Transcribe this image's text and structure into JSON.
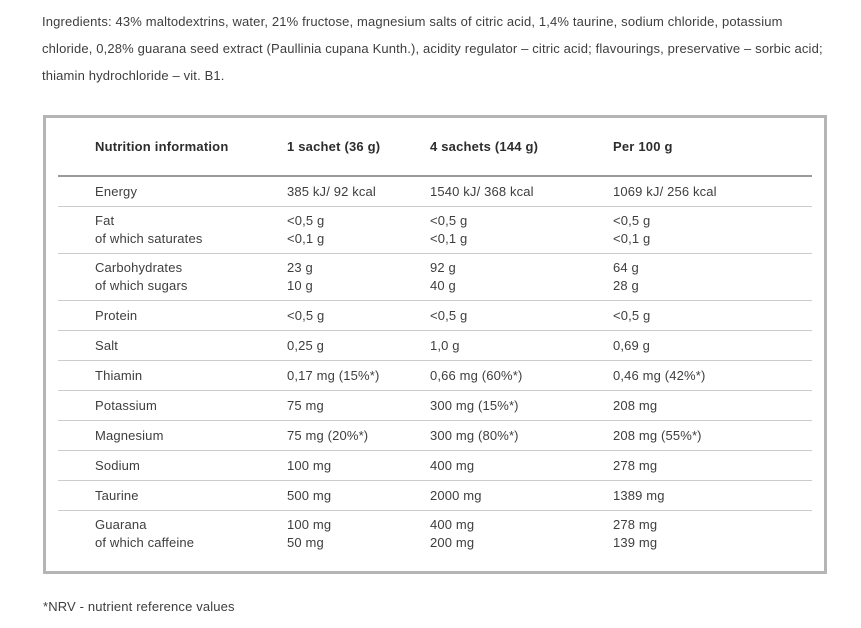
{
  "ingredients_paragraph": "Ingredients: 43% maltodextrins, water, 21% fructose, magnesium salts of citric acid, 1,4% taurine, sodium chloride, potassium chloride, 0,28% guarana seed extract (Paullinia cupana Kunth.), acidity regulator – citric acid; flavourings, preservative – sorbic acid; thiamin hydrochloride – vit. B1.",
  "table": {
    "columns": [
      "Nutrition information",
      "1 sachet (36 g)",
      "4 sachets (144 g)",
      "Per 100 g"
    ],
    "rows": [
      {
        "cells": [
          [
            "Energy"
          ],
          [
            "385 kJ/ 92 kcal"
          ],
          [
            "1540 kJ/ 368 kcal"
          ],
          [
            "1069 kJ/ 256 kcal"
          ]
        ]
      },
      {
        "cells": [
          [
            "Fat",
            "of which saturates"
          ],
          [
            "<0,5 g",
            "<0,1 g"
          ],
          [
            "<0,5 g",
            "<0,1 g"
          ],
          [
            "<0,5 g",
            "<0,1 g"
          ]
        ]
      },
      {
        "cells": [
          [
            "Carbohydrates",
            "of which sugars"
          ],
          [
            "23 g",
            "10 g"
          ],
          [
            "92 g",
            "40 g"
          ],
          [
            "64 g",
            "28 g"
          ]
        ]
      },
      {
        "cells": [
          [
            "Protein"
          ],
          [
            "<0,5 g"
          ],
          [
            "<0,5 g"
          ],
          [
            "<0,5 g"
          ]
        ]
      },
      {
        "cells": [
          [
            "Salt"
          ],
          [
            "0,25 g"
          ],
          [
            "1,0 g"
          ],
          [
            "0,69 g"
          ]
        ]
      },
      {
        "cells": [
          [
            "Thiamin"
          ],
          [
            "0,17 mg (15%*)"
          ],
          [
            "0,66 mg (60%*)"
          ],
          [
            "0,46 mg (42%*)"
          ]
        ]
      },
      {
        "cells": [
          [
            "Potassium"
          ],
          [
            "75 mg"
          ],
          [
            "300 mg (15%*)"
          ],
          [
            "208 mg"
          ]
        ]
      },
      {
        "cells": [
          [
            "Magnesium"
          ],
          [
            "75 mg (20%*)"
          ],
          [
            "300 mg (80%*)"
          ],
          [
            "208 mg (55%*)"
          ]
        ]
      },
      {
        "cells": [
          [
            "Sodium"
          ],
          [
            "100 mg"
          ],
          [
            "400 mg"
          ],
          [
            "278 mg"
          ]
        ]
      },
      {
        "cells": [
          [
            "Taurine"
          ],
          [
            "500 mg"
          ],
          [
            "2000 mg"
          ],
          [
            "1389 mg"
          ]
        ]
      },
      {
        "cells": [
          [
            "Guarana",
            "of which caffeine"
          ],
          [
            "100 mg",
            "50 mg"
          ],
          [
            "400 mg",
            "200 mg"
          ],
          [
            "278 mg",
            "139 mg"
          ]
        ]
      }
    ]
  },
  "footnote": "*NRV - nutrient reference values",
  "colors": {
    "text": "#3e3e3e",
    "heading_text": "#2d2d2d",
    "table_border": "#b5b5b5",
    "header_rule": "#9b9b9b",
    "row_rule": "#cccccc"
  }
}
